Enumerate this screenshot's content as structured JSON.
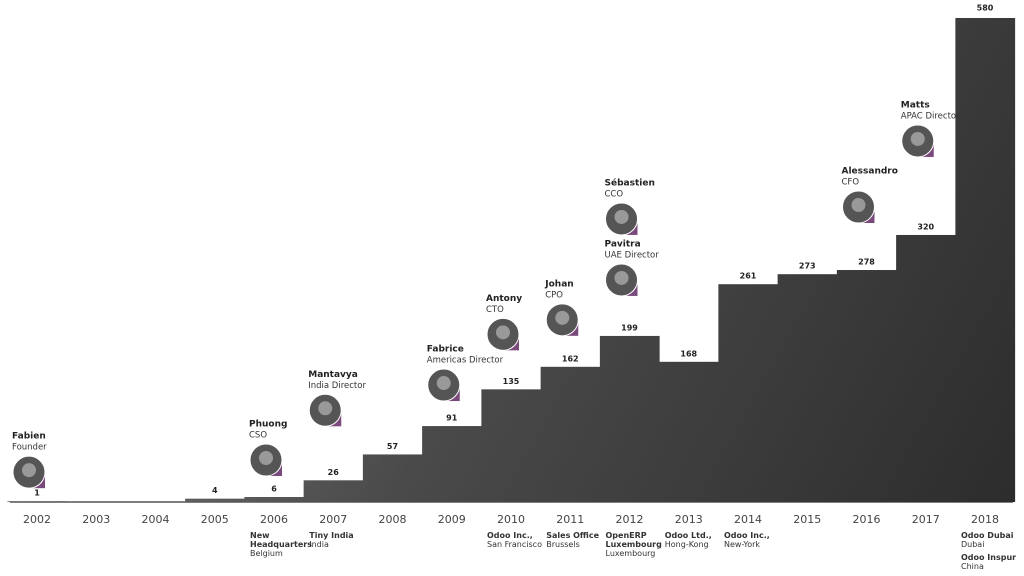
{
  "chart_data": {
    "type": "bar",
    "categories": [
      "2002",
      "2003",
      "2004",
      "2005",
      "2006",
      "2007",
      "2008",
      "2009",
      "2010",
      "2011",
      "2012",
      "2013",
      "2014",
      "2015",
      "2016",
      "2017",
      "2018"
    ],
    "values": [
      1,
      null,
      null,
      4,
      6,
      26,
      57,
      91,
      135,
      162,
      199,
      168,
      261,
      273,
      278,
      320,
      580
    ],
    "color": "#3a3a3a",
    "ylim": [
      0,
      580
    ]
  },
  "people": [
    {
      "name": "Fabien",
      "role": "Founder",
      "year": "2002"
    },
    {
      "name": "Phuong",
      "role": "CSO",
      "year": "2006"
    },
    {
      "name": "Mantavya",
      "role": "India Director",
      "year": "2007"
    },
    {
      "name": "Fabrice",
      "role": "Americas Director",
      "year": "2009"
    },
    {
      "name": "Antony",
      "role": "CTO",
      "year": "2010"
    },
    {
      "name": "Johan",
      "role": "CPO",
      "year": "2011"
    },
    {
      "name": "Sébastien",
      "role": "CCO",
      "year": "2012"
    },
    {
      "name": "Pavitra",
      "role": "UAE Director",
      "year": "2012"
    },
    {
      "name": "Alessandro",
      "role": "CFO",
      "year": "2016"
    },
    {
      "name": "Matts",
      "role": "APAC Director",
      "year": "2017"
    }
  ],
  "offices": [
    {
      "year": "2006",
      "items": [
        {
          "title": "New Headquarters",
          "place": "Belgium"
        }
      ]
    },
    {
      "year": "2007",
      "items": [
        {
          "title": "Tiny India",
          "place": "India"
        }
      ]
    },
    {
      "year": "2010",
      "items": [
        {
          "title": "Odoo Inc.,",
          "place": "San Francisco"
        }
      ]
    },
    {
      "year": "2011",
      "items": [
        {
          "title": "Sales Office",
          "place": "Brussels"
        }
      ]
    },
    {
      "year": "2012",
      "items": [
        {
          "title": "OpenERP Luxembourg",
          "place": "Luxembourg"
        }
      ]
    },
    {
      "year": "2013",
      "items": [
        {
          "title": "Odoo Ltd.,",
          "place": "Hong-Kong"
        }
      ]
    },
    {
      "year": "2014",
      "items": [
        {
          "title": "Odoo Inc.,",
          "place": "New-York"
        }
      ]
    },
    {
      "year": "2018",
      "items": [
        {
          "title": "Odoo Dubai",
          "place": "Dubai"
        },
        {
          "title": "Odoo Inspur",
          "place": "China"
        }
      ]
    }
  ]
}
